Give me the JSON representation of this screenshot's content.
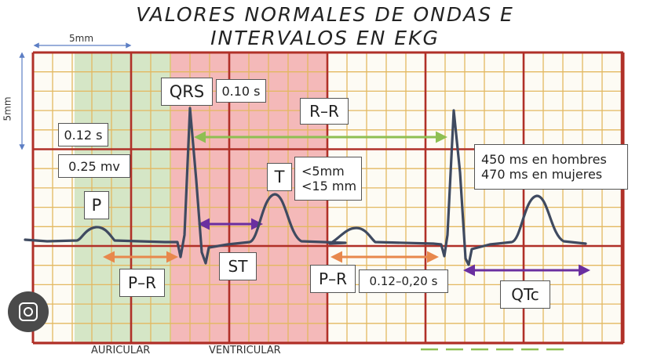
{
  "title": {
    "line1": "VALORES NORMALES DE ONDAS E",
    "line2": "INTERVALOS EN EKG"
  },
  "scale": {
    "horizontal": "5mm",
    "vertical": "5mm"
  },
  "labels": {
    "qrs": "QRS",
    "qrs_time": "0.10 s",
    "rr": "R–R",
    "p_duration": "0.12 s",
    "p_amplitude": "0.25 mv",
    "p": "P",
    "t": "T",
    "t_values_1": "<5mm",
    "t_values_2": "<15 mm",
    "qtc_values_1": "450 ms en hombres",
    "qtc_values_2": "470 ms en mujeres",
    "st": "ST",
    "pr_1": "P–R",
    "pr_2": "P–R",
    "pr_interval": "0.12–0,20 s",
    "qtc": "QTc",
    "auricular": "AURICULAR",
    "ventricular": "VENTRICULAR"
  },
  "colors": {
    "grid_major": "#b03028",
    "grid_minor": "#e3b860",
    "auricular_zone": "#d5e6c6",
    "ventricular_zone": "#f4b9b9",
    "trace": "#3f4a60",
    "rr_arrow": "#8ebf52",
    "pr_arrow": "#e8884c",
    "st_arrow": "#6a2fa0",
    "qtc_arrow": "#6a2fa0",
    "scale_arrow": "#5c7ec4"
  },
  "icons": {
    "corner": "lens-icon"
  }
}
